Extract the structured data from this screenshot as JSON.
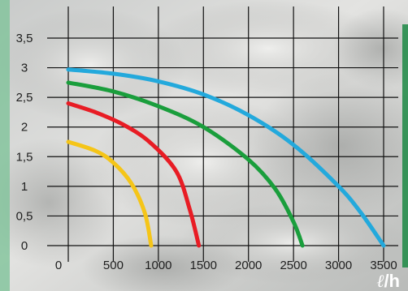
{
  "chart_data": {
    "type": "line",
    "xlim": [
      0,
      3500
    ],
    "ylim": [
      0,
      3.5
    ],
    "x_ticks": [
      0,
      500,
      1000,
      1500,
      2000,
      2500,
      3000,
      3500
    ],
    "x_tick_labels": [
      "0",
      "500",
      "1000",
      "1500",
      "2000",
      "2500",
      "3000",
      "3500"
    ],
    "y_ticks": [
      0,
      0.5,
      1,
      1.5,
      2,
      2.5,
      3,
      3.5
    ],
    "y_tick_labels": [
      "0",
      "0,5",
      "1",
      "1,5",
      "2",
      "2,5",
      "3",
      "3,5"
    ],
    "x_unit_label": {
      "italic_l": "ℓ",
      "rest": "/h"
    },
    "grid": true,
    "series": [
      {
        "color": "#f5c518",
        "x": [
          0,
          300,
          500,
          700,
          850,
          920
        ],
        "y": [
          1.75,
          1.6,
          1.4,
          1.05,
          0.55,
          0
        ]
      },
      {
        "color": "#e81c24",
        "x": [
          0,
          300,
          600,
          900,
          1200,
          1350,
          1450
        ],
        "y": [
          2.4,
          2.25,
          2.05,
          1.75,
          1.25,
          0.6,
          0
        ]
      },
      {
        "color": "#1a9e3c",
        "x": [
          0,
          500,
          1000,
          1500,
          2000,
          2300,
          2500,
          2600
        ],
        "y": [
          2.75,
          2.6,
          2.35,
          2.0,
          1.45,
          0.95,
          0.4,
          0
        ]
      },
      {
        "color": "#23a9dc",
        "x": [
          0,
          500,
          1000,
          1500,
          2000,
          2500,
          3000,
          3250,
          3500
        ],
        "y": [
          2.97,
          2.9,
          2.77,
          2.55,
          2.2,
          1.7,
          1.0,
          0.55,
          0
        ]
      }
    ]
  },
  "colors": {
    "accent_left": "#7fc39a",
    "accent_right": "#1d8a45",
    "grid": "#111111",
    "unit_text": "#ffffff"
  }
}
